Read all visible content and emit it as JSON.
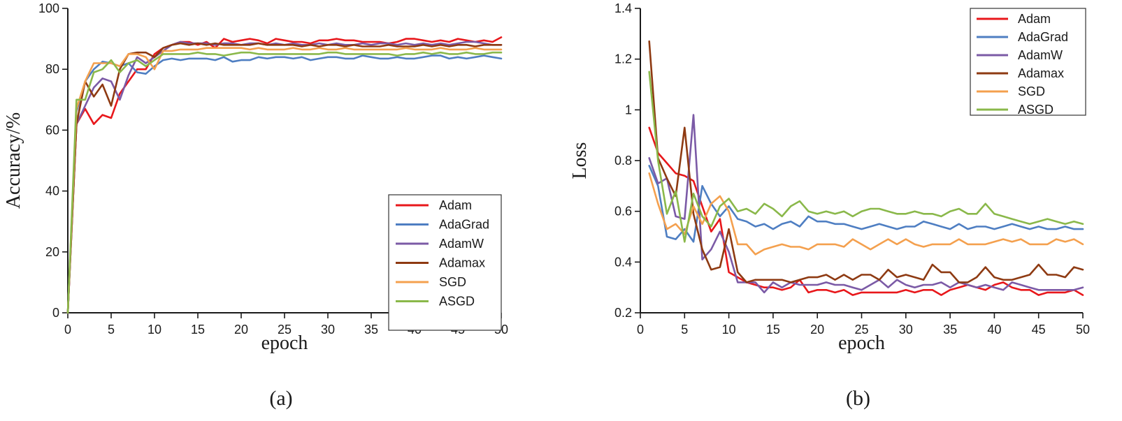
{
  "colors": {
    "Adam": "#e8171b",
    "AdaGrad": "#4e7ec2",
    "AdamW": "#7b5aa6",
    "Adamax": "#8e3a12",
    "SGD": "#f4a04e",
    "ASGD": "#8ab84a"
  },
  "chart_data": [
    {
      "type": "line",
      "panel_label": "(a)",
      "xlabel": "epoch",
      "ylabel": "Accuracy/%",
      "xlim": [
        0,
        50
      ],
      "ylim": [
        0,
        100
      ],
      "xticks": [
        0,
        5,
        10,
        15,
        20,
        25,
        30,
        35,
        40,
        45,
        50
      ],
      "yticks": [
        0,
        20,
        40,
        60,
        80,
        100
      ],
      "xtick_labels": [
        "0",
        "5",
        "10",
        "15",
        "20",
        "25",
        "30",
        "35",
        "40",
        "45",
        "50"
      ],
      "ytick_labels": [
        "0",
        "20",
        "40",
        "60",
        "80",
        "100"
      ],
      "legend_position": "bottom-right",
      "x": [
        0,
        1,
        2,
        3,
        4,
        5,
        6,
        7,
        8,
        9,
        10,
        11,
        12,
        13,
        14,
        15,
        16,
        17,
        18,
        19,
        20,
        21,
        22,
        23,
        24,
        25,
        26,
        27,
        28,
        29,
        30,
        31,
        32,
        33,
        34,
        35,
        36,
        37,
        38,
        39,
        40,
        41,
        42,
        43,
        44,
        45,
        46,
        47,
        48,
        49,
        50
      ],
      "series": [
        {
          "name": "Adam",
          "values": [
            0,
            62,
            67,
            62,
            65,
            64,
            72,
            76,
            80,
            80,
            85,
            87,
            88,
            89,
            89,
            88,
            89,
            87,
            90,
            89,
            89.5,
            90,
            89.5,
            88.5,
            90,
            89.5,
            89,
            89,
            88.5,
            89.5,
            89.5,
            90,
            89.5,
            89.5,
            89,
            89,
            89,
            88.5,
            89,
            90,
            90,
            89.5,
            89,
            89.5,
            89,
            90,
            89.5,
            89,
            89.5,
            89,
            90.5
          ]
        },
        {
          "name": "AdaGrad",
          "values": [
            0,
            66,
            76,
            80,
            82.5,
            82,
            81,
            82,
            79,
            78.5,
            81,
            83,
            83.5,
            83,
            83.5,
            83.5,
            83.5,
            83,
            84,
            82.5,
            83,
            83,
            84,
            83.5,
            84,
            84,
            83.5,
            84,
            83,
            83.5,
            84,
            84,
            83.5,
            83.5,
            84.5,
            84,
            83.5,
            83.5,
            84,
            83.5,
            83.5,
            84,
            84.5,
            84.5,
            83.5,
            84,
            83.5,
            84,
            84.5,
            84,
            83.5
          ]
        },
        {
          "name": "AdamW",
          "values": [
            0,
            62,
            68,
            74,
            77,
            76,
            70,
            78,
            84,
            82,
            84,
            86,
            88,
            89,
            88.5,
            88.5,
            88.5,
            88,
            88.5,
            88.5,
            88,
            88.5,
            88.5,
            88,
            88.5,
            88,
            88.5,
            88,
            88,
            88.5,
            88,
            88.5,
            88,
            88,
            88.5,
            88,
            88.5,
            88.5,
            88,
            88.5,
            88,
            88.5,
            88,
            88.5,
            88,
            88.5,
            89,
            89,
            88.5,
            88,
            88
          ]
        },
        {
          "name": "Adamax",
          "values": [
            0,
            62,
            76,
            71,
            75,
            68,
            80,
            85,
            85.5,
            85.5,
            84,
            87,
            88,
            88.5,
            88,
            88.5,
            88,
            88.5,
            88,
            88,
            88,
            88,
            88.5,
            88,
            88,
            88,
            88,
            87.5,
            88,
            87.5,
            88,
            88,
            87.5,
            88,
            87.5,
            87.5,
            87.5,
            88,
            87.5,
            87.5,
            87.5,
            88,
            87.5,
            88,
            87.5,
            88,
            88,
            87.5,
            88,
            88,
            88
          ]
        },
        {
          "name": "SGD",
          "values": [
            0,
            67,
            76,
            82,
            82,
            82,
            81,
            85,
            85,
            84,
            80,
            86,
            86,
            86.5,
            86.5,
            86.5,
            87,
            87,
            87,
            87,
            87,
            86.5,
            87,
            86.5,
            86.5,
            86.5,
            87,
            86.5,
            86.5,
            87,
            86.5,
            86.5,
            87,
            86.5,
            86.5,
            86.5,
            86.5,
            86.5,
            86.5,
            87,
            86.5,
            86.5,
            86.5,
            87,
            86.5,
            86.5,
            86.5,
            87,
            86.5,
            86.5,
            86.5
          ]
        },
        {
          "name": "ASGD",
          "values": [
            0,
            70,
            70,
            79,
            80,
            83,
            79,
            82,
            83,
            81,
            83,
            85,
            85,
            85,
            85,
            85.5,
            85,
            85,
            84.5,
            85,
            85.5,
            85.5,
            85,
            85,
            85,
            85,
            85,
            85,
            85,
            85,
            85.5,
            85.5,
            85,
            85,
            85,
            85,
            85,
            85,
            84.5,
            85,
            85,
            85.5,
            85,
            85.5,
            85,
            85,
            85.5,
            85,
            85,
            85.5,
            85.5
          ]
        }
      ]
    },
    {
      "type": "line",
      "panel_label": "(b)",
      "xlabel": "epoch",
      "ylabel": "Loss",
      "xlim": [
        0,
        50
      ],
      "ylim": [
        0.2,
        1.4
      ],
      "xticks": [
        0,
        5,
        10,
        15,
        20,
        25,
        30,
        35,
        40,
        45,
        50
      ],
      "yticks": [
        0.2,
        0.4,
        0.6,
        0.8,
        1.0,
        1.2,
        1.4
      ],
      "xtick_labels": [
        "0",
        "5",
        "10",
        "15",
        "20",
        "25",
        "30",
        "35",
        "40",
        "45",
        "50"
      ],
      "ytick_labels": [
        "0.2",
        "0.4",
        "0.6",
        "0.8",
        "1",
        "1.2",
        "1.4"
      ],
      "legend_position": "top-right",
      "x": [
        1,
        2,
        3,
        4,
        5,
        6,
        7,
        8,
        9,
        10,
        11,
        12,
        13,
        14,
        15,
        16,
        17,
        18,
        19,
        20,
        21,
        22,
        23,
        24,
        25,
        26,
        27,
        28,
        29,
        30,
        31,
        32,
        33,
        34,
        35,
        36,
        37,
        38,
        39,
        40,
        41,
        42,
        43,
        44,
        45,
        46,
        47,
        48,
        49,
        50
      ],
      "series": [
        {
          "name": "Adam",
          "values": [
            0.93,
            0.83,
            0.79,
            0.75,
            0.74,
            0.72,
            0.62,
            0.52,
            0.57,
            0.36,
            0.34,
            0.32,
            0.31,
            0.3,
            0.3,
            0.29,
            0.3,
            0.33,
            0.28,
            0.29,
            0.29,
            0.28,
            0.29,
            0.27,
            0.28,
            0.28,
            0.28,
            0.28,
            0.28,
            0.29,
            0.28,
            0.29,
            0.29,
            0.27,
            0.29,
            0.3,
            0.31,
            0.3,
            0.29,
            0.31,
            0.32,
            0.3,
            0.29,
            0.29,
            0.27,
            0.28,
            0.28,
            0.28,
            0.29,
            0.27
          ]
        },
        {
          "name": "AdaGrad",
          "values": [
            0.78,
            0.7,
            0.5,
            0.49,
            0.53,
            0.48,
            0.7,
            0.63,
            0.58,
            0.62,
            0.57,
            0.56,
            0.54,
            0.55,
            0.53,
            0.55,
            0.56,
            0.54,
            0.58,
            0.56,
            0.56,
            0.55,
            0.55,
            0.54,
            0.53,
            0.54,
            0.55,
            0.54,
            0.53,
            0.54,
            0.54,
            0.56,
            0.55,
            0.54,
            0.53,
            0.55,
            0.53,
            0.54,
            0.54,
            0.53,
            0.54,
            0.55,
            0.54,
            0.53,
            0.54,
            0.53,
            0.53,
            0.54,
            0.53,
            0.53
          ]
        },
        {
          "name": "AdamW",
          "values": [
            0.81,
            0.71,
            0.73,
            0.58,
            0.57,
            0.98,
            0.41,
            0.45,
            0.52,
            0.44,
            0.32,
            0.32,
            0.32,
            0.28,
            0.32,
            0.3,
            0.32,
            0.31,
            0.31,
            0.31,
            0.32,
            0.31,
            0.31,
            0.3,
            0.29,
            0.31,
            0.33,
            0.3,
            0.33,
            0.31,
            0.3,
            0.31,
            0.31,
            0.32,
            0.3,
            0.32,
            0.31,
            0.3,
            0.31,
            0.3,
            0.29,
            0.32,
            0.31,
            0.3,
            0.29,
            0.29,
            0.29,
            0.29,
            0.29,
            0.3
          ]
        },
        {
          "name": "Adamax",
          "values": [
            1.27,
            0.81,
            0.73,
            0.66,
            0.93,
            0.59,
            0.45,
            0.37,
            0.38,
            0.53,
            0.36,
            0.32,
            0.33,
            0.33,
            0.33,
            0.33,
            0.32,
            0.33,
            0.34,
            0.34,
            0.35,
            0.33,
            0.35,
            0.33,
            0.35,
            0.35,
            0.33,
            0.37,
            0.34,
            0.35,
            0.34,
            0.33,
            0.39,
            0.36,
            0.36,
            0.32,
            0.32,
            0.34,
            0.38,
            0.34,
            0.33,
            0.33,
            0.34,
            0.35,
            0.39,
            0.35,
            0.35,
            0.34,
            0.38,
            0.37
          ]
        },
        {
          "name": "SGD",
          "values": [
            0.75,
            0.63,
            0.53,
            0.55,
            0.51,
            0.62,
            0.55,
            0.63,
            0.66,
            0.6,
            0.47,
            0.47,
            0.43,
            0.45,
            0.46,
            0.47,
            0.46,
            0.46,
            0.45,
            0.47,
            0.47,
            0.47,
            0.46,
            0.49,
            0.47,
            0.45,
            0.47,
            0.49,
            0.47,
            0.49,
            0.47,
            0.46,
            0.47,
            0.47,
            0.47,
            0.49,
            0.47,
            0.47,
            0.47,
            0.48,
            0.49,
            0.48,
            0.49,
            0.47,
            0.47,
            0.47,
            0.49,
            0.48,
            0.49,
            0.47
          ]
        },
        {
          "name": "ASGD",
          "values": [
            1.15,
            0.8,
            0.59,
            0.68,
            0.48,
            0.67,
            0.58,
            0.54,
            0.62,
            0.65,
            0.6,
            0.61,
            0.59,
            0.63,
            0.61,
            0.58,
            0.62,
            0.64,
            0.6,
            0.59,
            0.6,
            0.59,
            0.6,
            0.58,
            0.6,
            0.61,
            0.61,
            0.6,
            0.59,
            0.59,
            0.6,
            0.59,
            0.59,
            0.58,
            0.6,
            0.61,
            0.59,
            0.59,
            0.63,
            0.59,
            0.58,
            0.57,
            0.56,
            0.55,
            0.56,
            0.57,
            0.56,
            0.55,
            0.56,
            0.55
          ]
        }
      ]
    }
  ]
}
